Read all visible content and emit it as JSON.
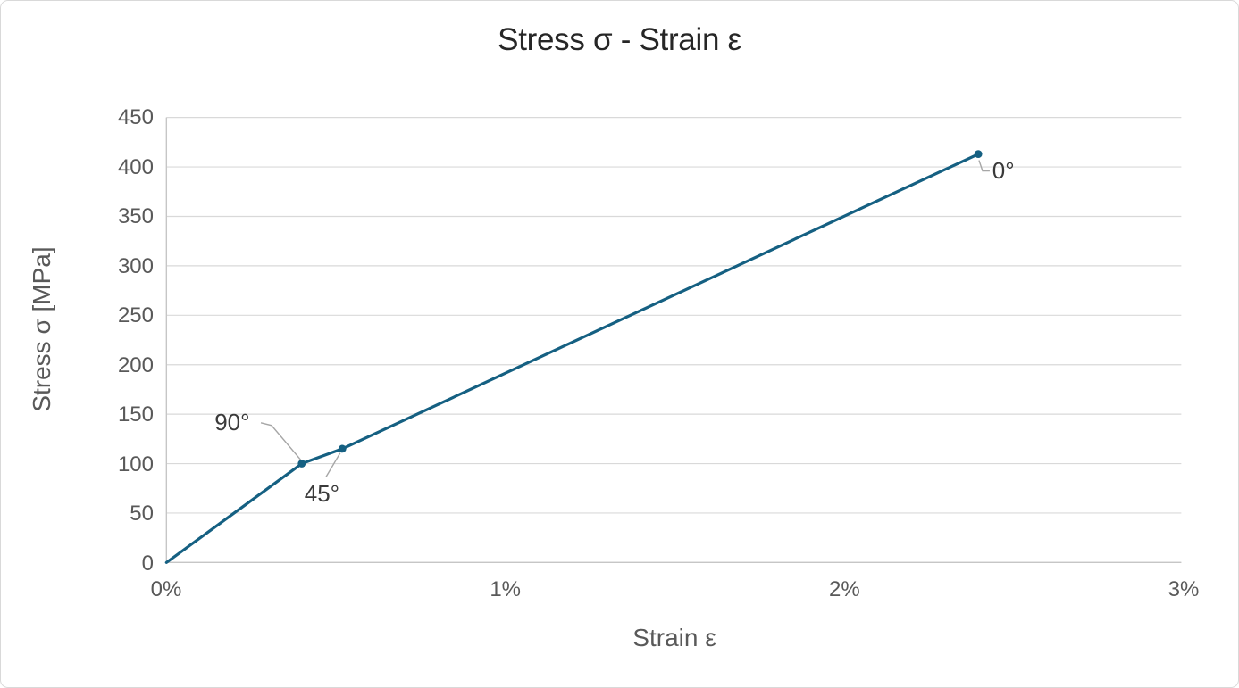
{
  "chart_data": {
    "type": "line",
    "title": "Stress σ - Strain ε",
    "xlabel": "Strain ε",
    "ylabel": "Stress σ [MPa]",
    "xlim": [
      0,
      3
    ],
    "ylim": [
      0,
      450
    ],
    "x_unit": "%",
    "y_unit": "MPa",
    "grid": "horizontal",
    "legend": "none",
    "x_tick_values": [
      0,
      1,
      2,
      3
    ],
    "x_tick_labels": [
      "0%",
      "1%",
      "2%",
      "3%"
    ],
    "y_tick_values": [
      0,
      50,
      100,
      150,
      200,
      250,
      300,
      350,
      400,
      450
    ],
    "y_tick_labels": [
      "0",
      "50",
      "100",
      "150",
      "200",
      "250",
      "300",
      "350",
      "400",
      "450"
    ],
    "series": [
      {
        "color": "#156082",
        "marker": "circle",
        "points": [
          {
            "x_percent": 0,
            "y_mpa": 0,
            "label": ""
          },
          {
            "x_percent": 0.4,
            "y_mpa": 100,
            "label": "90°"
          },
          {
            "x_percent": 0.52,
            "y_mpa": 115,
            "label": "45°"
          },
          {
            "x_percent": 2.4,
            "y_mpa": 413,
            "label": "0°"
          }
        ]
      }
    ],
    "annotations": [
      "90°",
      "45°",
      "0°"
    ]
  },
  "colors": {
    "series_line": "#156082",
    "marker_fill": "#156082",
    "gridline": "#d9d9d9",
    "axis_line": "#c6c6c6",
    "tick_text": "#595959",
    "axis_title_text": "#595959",
    "data_label_text": "#3a3a3a",
    "leader_line": "#a6a6a6",
    "title_text": "#262626",
    "chart_border": "#d9d9d9",
    "background": "#ffffff"
  }
}
